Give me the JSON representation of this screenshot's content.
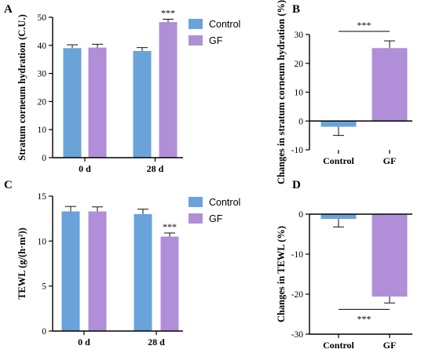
{
  "colors": {
    "control": "#6aa3d9",
    "gf": "#b08fd8",
    "axis": "#000000",
    "error": "#111111"
  },
  "chart_data": [
    {
      "panel": "A",
      "type": "bar",
      "ylabel": "Stratum corneum hydration (C.U.)",
      "categories": [
        "0 d",
        "28 d"
      ],
      "series": [
        {
          "name": "Control",
          "values": [
            39,
            38
          ],
          "errors": [
            1.2,
            1.2
          ]
        },
        {
          "name": "GF",
          "values": [
            39.2,
            48.3
          ],
          "errors": [
            1.2,
            1.0
          ]
        }
      ],
      "ylim": [
        0,
        50
      ],
      "yticks": [
        0,
        10,
        20,
        30,
        40,
        50
      ],
      "annotation": "***",
      "legend": "top-right"
    },
    {
      "panel": "B",
      "type": "bar",
      "ylabel": "Changes in stratum corneum hydration (%)",
      "categories": [
        "Control",
        "GF"
      ],
      "values": [
        -2,
        25.3
      ],
      "errors": [
        3.0,
        2.5
      ],
      "ylim": [
        -10,
        30
      ],
      "yticks": [
        -10,
        0,
        10,
        20,
        30
      ],
      "annotation": "***"
    },
    {
      "panel": "C",
      "type": "bar",
      "ylabel": "TEWL (g/(h·m²))",
      "categories": [
        "0 d",
        "28 d"
      ],
      "series": [
        {
          "name": "Control",
          "values": [
            13.3,
            13.0
          ],
          "errors": [
            0.55,
            0.55
          ]
        },
        {
          "name": "GF",
          "values": [
            13.3,
            10.5
          ],
          "errors": [
            0.5,
            0.4
          ]
        }
      ],
      "ylim": [
        0,
        15
      ],
      "yticks": [
        0,
        5,
        10,
        15
      ],
      "annotation": "***",
      "legend": "top-right"
    },
    {
      "panel": "D",
      "type": "bar",
      "ylabel": "Changes in TEWL (%)",
      "categories": [
        "Control",
        "GF"
      ],
      "values": [
        -1.2,
        -20.6
      ],
      "errors": [
        2.0,
        1.6
      ],
      "ylim": [
        -30,
        0
      ],
      "yticks": [
        -30,
        -20,
        -10,
        0
      ],
      "annotation": "***"
    }
  ]
}
